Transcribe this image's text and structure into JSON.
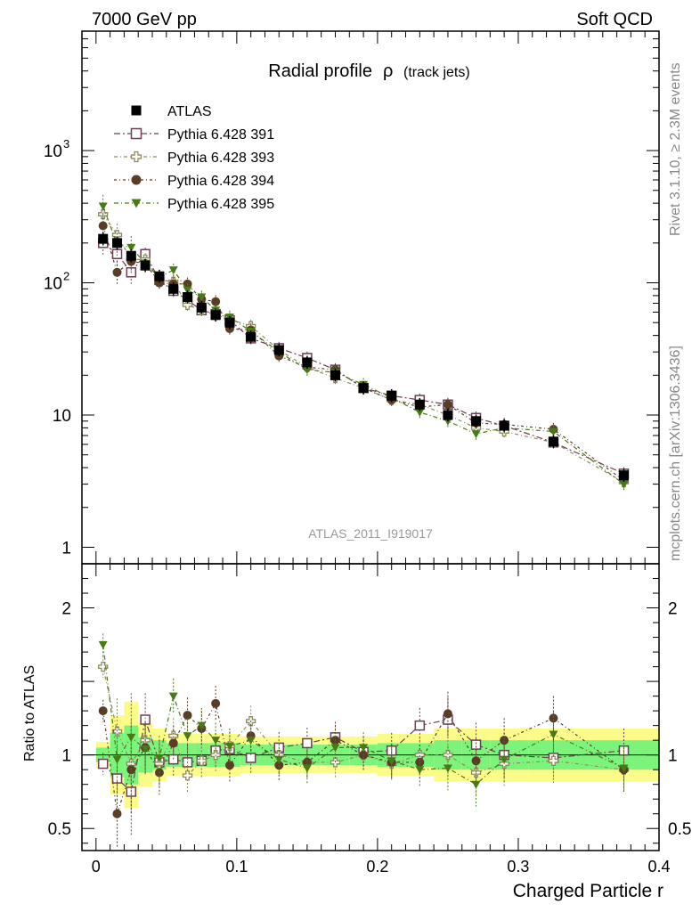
{
  "header": {
    "left": "7000 GeV pp",
    "right": "Soft QCD"
  },
  "side_text": {
    "top": "Rivet 3.1.10, ≥ 2.3M events",
    "bottom": "mcplots.cern.ch [arXiv:1306.3436]"
  },
  "chart_data": {
    "type": "line",
    "title": "Radial profile",
    "title_symbol": "ρ",
    "title_suffix": "(track jets)",
    "xlabel": "Charged Particle r",
    "ylabel_ratio": "Ratio to ATLAS",
    "watermark": "ATLAS_2011_I919017",
    "xlim": [
      -0.01,
      0.4
    ],
    "ylim_main": [
      0.75,
      8000
    ],
    "ylim_ratio": [
      0.35,
      2.3
    ],
    "yscale_main": "log",
    "x_ticks": [
      "0",
      "0.1",
      "0.2",
      "0.3",
      "0.4"
    ],
    "y_ticks_main": [
      {
        "base": "1",
        "exp": ""
      },
      {
        "base": "10",
        "exp": ""
      },
      {
        "base": "10",
        "exp": "2"
      },
      {
        "base": "10",
        "exp": "3"
      }
    ],
    "y_ticks_ratio": [
      "0.5",
      "1",
      "2"
    ],
    "x": [
      0.005,
      0.015,
      0.025,
      0.035,
      0.045,
      0.055,
      0.065,
      0.075,
      0.085,
      0.095,
      0.11,
      0.13,
      0.15,
      0.17,
      0.19,
      0.21,
      0.23,
      0.25,
      0.27,
      0.29,
      0.325,
      0.375
    ],
    "data": {
      "name": "ATLAS",
      "values": [
        215,
        200,
        160,
        135,
        112,
        90,
        78,
        65,
        57,
        50,
        39,
        31,
        25,
        20,
        16,
        14,
        12,
        10,
        9,
        8.3,
        6.3,
        3.5
      ]
    },
    "series": [
      {
        "name": "Pythia 6.428 391",
        "values": [
          200,
          165,
          120,
          165,
          105,
          87,
          74,
          62,
          58,
          52,
          38,
          32,
          27,
          22,
          16,
          14,
          13,
          12,
          9.5,
          8.3,
          6.2,
          3.6
        ]
      },
      {
        "name": "Pythia 6.428 393",
        "values": [
          330,
          230,
          150,
          150,
          105,
          102,
          68,
          62,
          57,
          53,
          47,
          31,
          23,
          19,
          16,
          13,
          12,
          10,
          8,
          7.5,
          6.2,
          3.1
        ]
      },
      {
        "name": "Pythia 6.428 394",
        "values": [
          270,
          120,
          145,
          140,
          100,
          98,
          98,
          75,
          72,
          45,
          44,
          28,
          23,
          22,
          16,
          13,
          11.5,
          12,
          8.7,
          8.5,
          7.8,
          3.2
        ]
      },
      {
        "name": "Pythia 6.428 395",
        "values": [
          380,
          195,
          185,
          140,
          110,
          125,
          88,
          78,
          62,
          55,
          43,
          30,
          22,
          21,
          17,
          13.5,
          10.5,
          9,
          7.2,
          8,
          7.5,
          3
        ]
      }
    ],
    "ratio_values": [
      [
        0.94,
        0.84,
        0.75,
        1.24,
        0.95,
        0.97,
        0.95,
        0.96,
        1.03,
        1.04,
        0.98,
        1.05,
        1.08,
        1.12,
        1.02,
        1.03,
        1.2,
        1.24,
        1.07,
        1.0,
        0.98,
        1.03
      ],
      [
        1.6,
        1.16,
        0.94,
        1.1,
        0.94,
        1.13,
        0.86,
        0.96,
        1.0,
        1.06,
        1.23,
        1.0,
        0.95,
        0.95,
        1.0,
        0.94,
        1.0,
        1.0,
        0.88,
        0.94,
        0.96,
        0.9
      ],
      [
        1.3,
        0.6,
        0.9,
        1.05,
        0.88,
        1.08,
        1.27,
        1.18,
        1.35,
        0.93,
        1.13,
        0.93,
        0.95,
        1.1,
        1.0,
        0.95,
        0.95,
        1.28,
        0.96,
        1.1,
        1.25,
        0.9
      ],
      [
        1.75,
        0.97,
        1.12,
        1.04,
        0.98,
        1.4,
        1.13,
        1.2,
        1.1,
        1.06,
        1.1,
        0.97,
        0.91,
        1.05,
        1.05,
        0.96,
        0.9,
        0.91,
        0.8,
        0.97,
        1.14,
        0.91
      ]
    ],
    "ratio_errors": [
      0.05,
      0.15,
      0.2,
      0.12,
      0.1,
      0.08,
      0.08,
      0.08,
      0.08,
      0.08,
      0.07,
      0.07,
      0.07,
      0.07,
      0.07,
      0.08,
      0.08,
      0.1,
      0.1,
      0.1,
      0.1,
      0.1
    ]
  },
  "colors": {
    "data": "#000000",
    "s391": "#6b3f54",
    "s393": "#8e8a5e",
    "s394": "#5a3d26",
    "s395": "#4a7a16",
    "band_inner": "#7cf47c",
    "band_outer": "#fbfb8a"
  }
}
